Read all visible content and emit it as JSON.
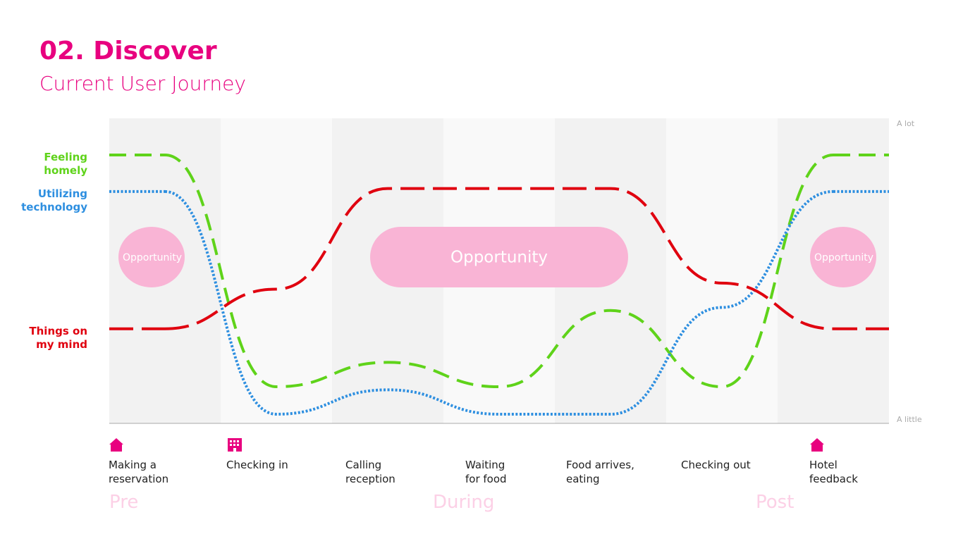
{
  "chart_data": {
    "type": "line",
    "title": "02. Discover",
    "subtitle": "Current User Journey",
    "categories": [
      "Making a reservation",
      "Checking in",
      "Calling reception",
      "Waiting for food",
      "Food arrives, eating",
      "Checking out",
      "Hotel feedback"
    ],
    "series": [
      {
        "name": "Feeling homely",
        "color": "#5fd31a",
        "dash": "dashed",
        "values": [
          8.8,
          1.2,
          2.0,
          1.2,
          3.7,
          1.2,
          8.8
        ]
      },
      {
        "name": "Utilizing technology",
        "color": "#2e8fe0",
        "dash": "dotted",
        "values": [
          7.6,
          0.3,
          1.1,
          0.3,
          0.3,
          3.8,
          7.6
        ]
      },
      {
        "name": "Things on my mind",
        "color": "#e0000f",
        "dash": "long-dashed",
        "values": [
          3.1,
          4.4,
          7.7,
          7.7,
          7.7,
          4.6,
          3.1
        ]
      }
    ],
    "ylim": [
      0,
      10
    ],
    "yticks": [
      {
        "value": 0,
        "label": "A little"
      },
      {
        "value": 10,
        "label": "A lot"
      }
    ],
    "annotations": [
      "Opportunity",
      "Opportunity",
      "Opportunity"
    ],
    "phases": [
      "Pre",
      "During",
      "Post"
    ]
  }
}
